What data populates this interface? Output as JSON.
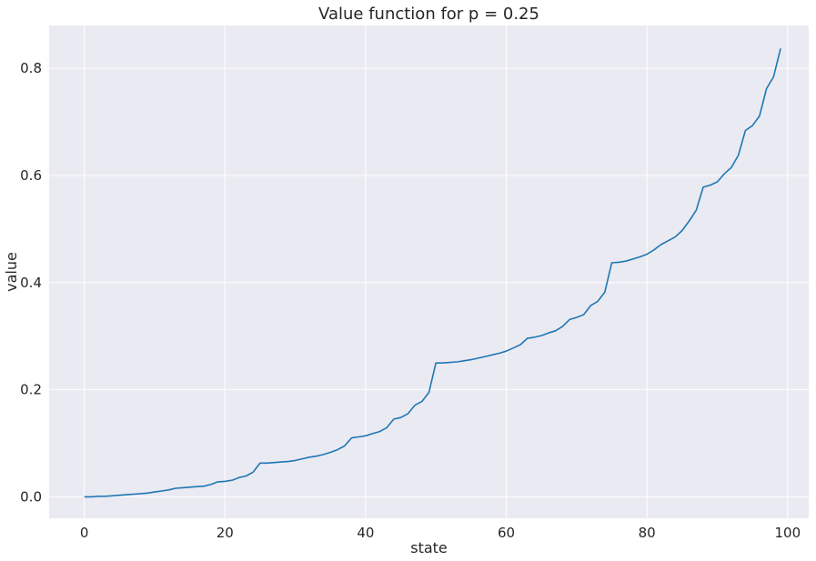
{
  "chart_data": {
    "type": "line",
    "title": "Value function for p = 0.25",
    "xlabel": "state",
    "ylabel": "value",
    "xlim": [
      -5,
      103
    ],
    "ylim": [
      -0.04,
      0.88
    ],
    "xticks": [
      0,
      20,
      40,
      60,
      80,
      100
    ],
    "xtick_labels": [
      "0",
      "20",
      "40",
      "60",
      "80",
      "100"
    ],
    "yticks": [
      0.0,
      0.2,
      0.4,
      0.6,
      0.8
    ],
    "ytick_labels": [
      "0.0",
      "0.2",
      "0.4",
      "0.6",
      "0.8"
    ],
    "grid": true,
    "legend": "none",
    "colors": {
      "background": "#eaeaf2",
      "grid": "#ffffff",
      "line": "#1f77b4"
    },
    "series": [
      {
        "x": [
          0,
          1,
          2,
          3,
          4,
          5,
          6,
          7,
          8,
          9,
          10,
          11,
          12,
          13,
          14,
          15,
          16,
          17,
          18,
          19,
          20,
          21,
          22,
          23,
          24,
          25,
          26,
          27,
          28,
          29,
          30,
          31,
          32,
          33,
          34,
          35,
          36,
          37,
          38,
          39,
          40,
          41,
          42,
          43,
          44,
          45,
          46,
          47,
          48,
          49,
          50,
          51,
          52,
          53,
          54,
          55,
          56,
          57,
          58,
          59,
          60,
          61,
          62,
          63,
          64,
          65,
          66,
          67,
          68,
          69,
          70,
          71,
          72,
          73,
          74,
          75,
          76,
          77,
          78,
          79,
          80,
          81,
          82,
          83,
          84,
          85,
          86,
          87,
          88,
          89,
          90,
          91,
          92,
          93,
          94,
          95,
          96,
          97,
          98,
          99
        ],
        "values": [
          0.0,
          0.0,
          0.001,
          0.001,
          0.002,
          0.003,
          0.004,
          0.005,
          0.006,
          0.007,
          0.009,
          0.011,
          0.013,
          0.016,
          0.017,
          0.018,
          0.019,
          0.02,
          0.023,
          0.028,
          0.029,
          0.031,
          0.036,
          0.039,
          0.046,
          0.063,
          0.063,
          0.064,
          0.065,
          0.066,
          0.068,
          0.071,
          0.074,
          0.076,
          0.079,
          0.083,
          0.088,
          0.095,
          0.11,
          0.112,
          0.114,
          0.118,
          0.122,
          0.129,
          0.145,
          0.148,
          0.155,
          0.171,
          0.178,
          0.195,
          0.25,
          0.25,
          0.251,
          0.252,
          0.254,
          0.256,
          0.259,
          0.262,
          0.265,
          0.268,
          0.272,
          0.278,
          0.284,
          0.296,
          0.298,
          0.301,
          0.306,
          0.31,
          0.318,
          0.331,
          0.335,
          0.34,
          0.357,
          0.365,
          0.382,
          0.437,
          0.438,
          0.44,
          0.444,
          0.448,
          0.453,
          0.461,
          0.471,
          0.478,
          0.485,
          0.497,
          0.515,
          0.535,
          0.578,
          0.582,
          0.588,
          0.603,
          0.615,
          0.638,
          0.684,
          0.693,
          0.711,
          0.762,
          0.784,
          0.837
        ]
      }
    ]
  }
}
